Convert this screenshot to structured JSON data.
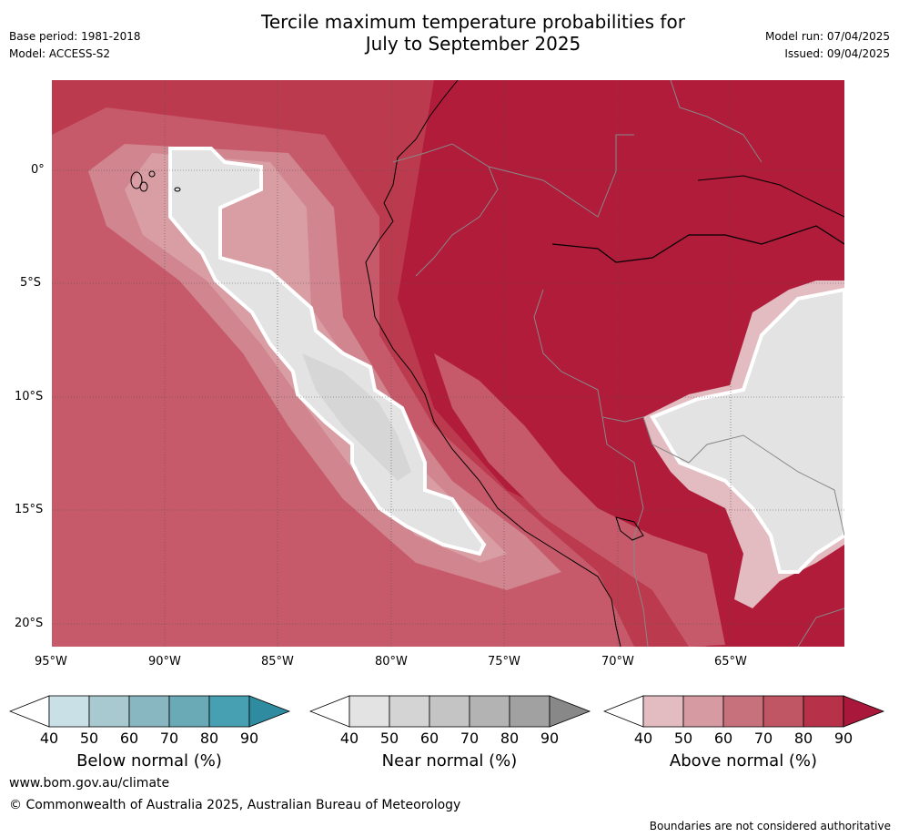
{
  "header": {
    "title_line1": "Tercile maximum temperature probabilities for",
    "title_line2": "July to September 2025",
    "base_period": "Base period: 1981-2018",
    "model": "Model: ACCESS-S2",
    "model_run": "Model run: 07/04/2025",
    "issued": "Issued: 09/04/2025"
  },
  "map": {
    "lon_labels": [
      "95°W",
      "90°W",
      "85°W",
      "80°W",
      "75°W",
      "70°W",
      "65°W"
    ],
    "lat_labels": [
      "0°",
      "5°S",
      "10°S",
      "15°S",
      "20°S"
    ],
    "colors": {
      "above_90": "#b01c3a",
      "above_80": "#bb3a4e",
      "above_70": "#c65a6a",
      "above_60": "#d0858f",
      "above_50": "#d99da4",
      "above_40": "#e2bcc0",
      "near_40": "#e3e3e3",
      "near_50": "#d6d6d6",
      "near_60": "#c8c8c8",
      "land_boundary": "#000000",
      "country_boundary": "#888888"
    }
  },
  "colorbars": [
    {
      "label": "Below normal (%)",
      "ticks": [
        "40",
        "50",
        "60",
        "70",
        "80",
        "90"
      ],
      "colors": [
        "#ffffff",
        "#c9e1e6",
        "#a7c9cf",
        "#89b7c1",
        "#6aaab6",
        "#47a0b1",
        "#2f8b9f"
      ]
    },
    {
      "label": "Near normal (%)",
      "ticks": [
        "40",
        "50",
        "60",
        "70",
        "80",
        "90"
      ],
      "colors": [
        "#ffffff",
        "#e3e3e3",
        "#d4d4d4",
        "#c4c4c4",
        "#b3b3b3",
        "#a1a1a1",
        "#888888"
      ]
    },
    {
      "label": "Above normal (%)",
      "ticks": [
        "40",
        "50",
        "60",
        "70",
        "80",
        "90"
      ],
      "colors": [
        "#ffffff",
        "#e2bcc0",
        "#d59aa2",
        "#c7717d",
        "#c05564",
        "#b73149",
        "#a9183a"
      ]
    }
  ],
  "footer": {
    "website": "www.bom.gov.au/climate",
    "copyright": "© Commonwealth of Australia 2025, Australian Bureau of Meteorology",
    "disclaimer": "Boundaries are not considered authoritative"
  }
}
